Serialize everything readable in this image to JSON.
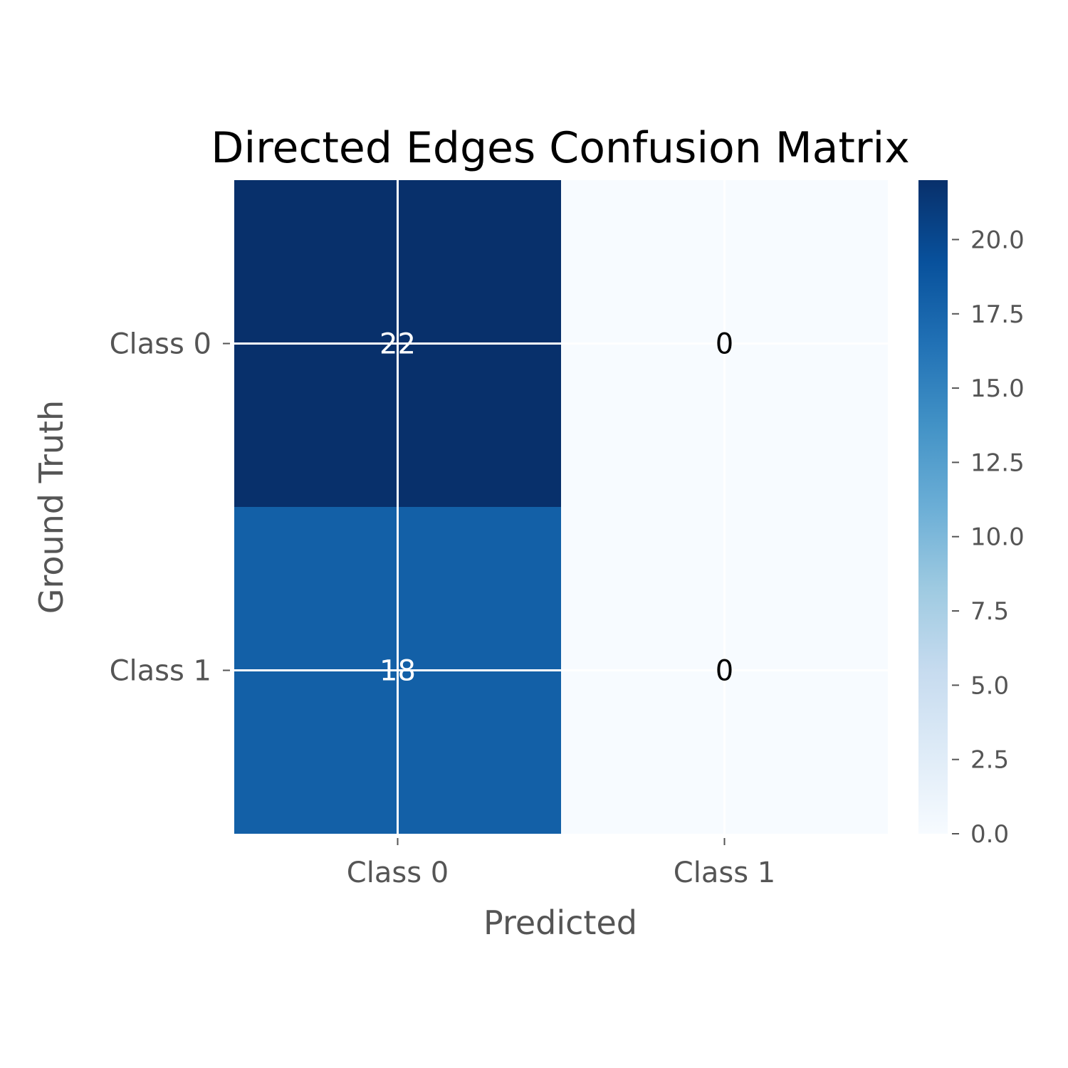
{
  "chart_data": {
    "type": "heatmap",
    "title": "Directed Edges Confusion Matrix",
    "xlabel": "Predicted",
    "ylabel": "Ground Truth",
    "x_categories": [
      "Class 0",
      "Class 1"
    ],
    "y_categories": [
      "Class 0",
      "Class 1"
    ],
    "values": [
      [
        22,
        0
      ],
      [
        18,
        0
      ]
    ],
    "colormap": "Blues",
    "color_range": [
      0,
      22
    ],
    "colorbar_ticks": [
      "0.0",
      "2.5",
      "5.0",
      "7.5",
      "10.0",
      "12.5",
      "15.0",
      "17.5",
      "20.0"
    ],
    "grid": true,
    "colors": {
      "cell_text_dark": "#000000",
      "cell_text_light": "#ffffff",
      "grid": "#ffffff"
    }
  }
}
